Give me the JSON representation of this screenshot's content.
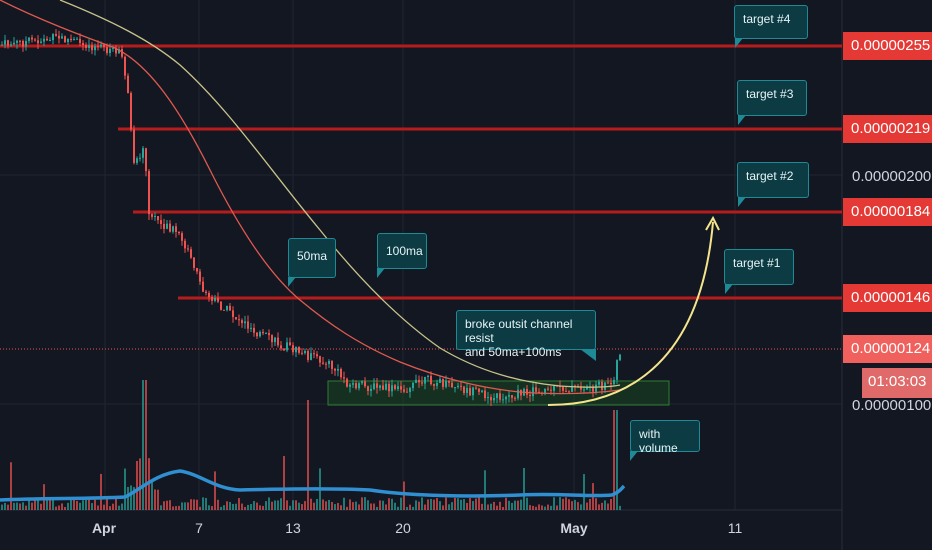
{
  "chart_data": {
    "type": "candlestick",
    "x_ticks": [
      "Apr",
      "7",
      "13",
      "20",
      "May",
      "11"
    ],
    "y_ticks": [
      "0.00000200",
      "0.00000100"
    ],
    "price_levels": [
      {
        "value": "0.00000255",
        "target": "target #4"
      },
      {
        "value": "0.00000219",
        "target": "target #3"
      },
      {
        "value": "0.00000184",
        "target": "target #2"
      },
      {
        "value": "0.00000146",
        "target": "target #1"
      }
    ],
    "current_price": "0.00000124",
    "countdown": "01:03:03",
    "series": [
      {
        "name": "50ma",
        "color": "#e05a4f"
      },
      {
        "name": "100ma",
        "color": "#c8c38a"
      },
      {
        "name": "volume",
        "color": "#2f8fd0"
      }
    ],
    "annotations": [
      "target #4",
      "target #3",
      "target #2",
      "target #1",
      "50ma",
      "100ma",
      "broke outsit channel resist\nand 50ma+100ms",
      "with volume"
    ]
  },
  "labels": {
    "t4": "target #4",
    "t3": "target #3",
    "t2": "target #2",
    "t1": "target #1",
    "ma50": "50ma",
    "ma100": "100ma",
    "broke_line1": "broke outsit channel resist",
    "broke_line2": "and 50ma+100ms",
    "volume": "with volume"
  },
  "colors": {
    "background": "#131722",
    "target_line": "#b71c1c",
    "price_label_red": "#e53935",
    "current_price_bg": "#f0605d",
    "countdown_bg": "#e06a6a",
    "candle_up": "#26a69a",
    "candle_down": "#ef5350",
    "channel_fill": "#1b5e20",
    "arrow": "#f4e58c"
  }
}
